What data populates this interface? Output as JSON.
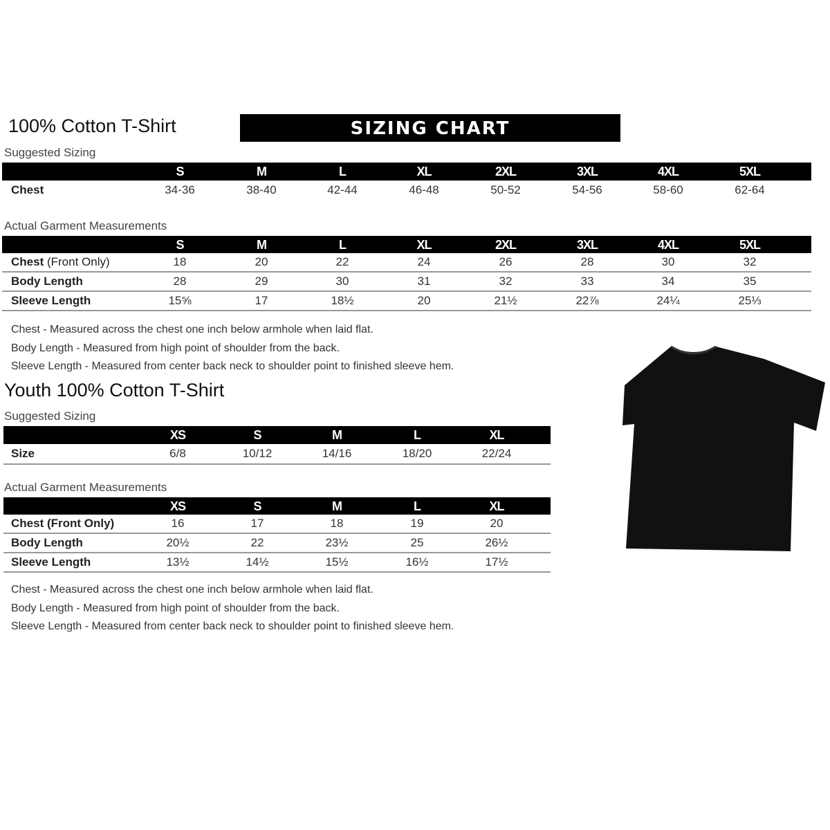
{
  "adult": {
    "title": "100% Cotton T-Shirt",
    "banner": "SIZING CHART",
    "suggested_label": "Suggested Sizing",
    "sizes": [
      "S",
      "M",
      "L",
      "XL",
      "2XL",
      "3XL",
      "4XL",
      "5XL"
    ],
    "suggested_rows": [
      {
        "label": "Chest",
        "values": [
          "34-36",
          "38-40",
          "42-44",
          "46-48",
          "50-52",
          "54-56",
          "58-60",
          "62-64"
        ]
      }
    ],
    "actual_label": "Actual Garment Measurements",
    "actual_rows": [
      {
        "label": "Chest",
        "label_extra": " (Front Only)",
        "values": [
          "18",
          "20",
          "22",
          "24",
          "26",
          "28",
          "30",
          "32"
        ]
      },
      {
        "label": "Body Length",
        "label_extra": "",
        "values": [
          "28",
          "29",
          "30",
          "31",
          "32",
          "33",
          "34",
          "35"
        ]
      },
      {
        "label": "Sleeve Length",
        "label_extra": "",
        "values": [
          "15⅝",
          "17",
          "18½",
          "20",
          "21½",
          "22⅞",
          "24¼",
          "25⅓"
        ]
      }
    ],
    "notes": [
      "Chest - Measured across the chest one inch below armhole when laid flat.",
      "Body Length - Measured from high point of shoulder from the back.",
      "Sleeve Length - Measured from center back neck to shoulder point to finished sleeve hem."
    ]
  },
  "youth": {
    "title": "Youth 100% Cotton T-Shirt",
    "suggested_label": "Suggested Sizing",
    "sizes": [
      "XS",
      "S",
      "M",
      "L",
      "XL"
    ],
    "suggested_rows": [
      {
        "label": "Size",
        "values": [
          "6/8",
          "10/12",
          "14/16",
          "18/20",
          "22/24"
        ]
      }
    ],
    "actual_label": "Actual Garment Measurements",
    "actual_rows": [
      {
        "label": "Chest (Front Only)",
        "values": [
          "16",
          "17",
          "18",
          "19",
          "20"
        ]
      },
      {
        "label": "Body Length",
        "values": [
          "20½",
          "22",
          "23½",
          "25",
          "26½"
        ]
      },
      {
        "label": "Sleeve Length",
        "values": [
          "13½",
          "14½",
          "15½",
          "16½",
          "17½"
        ]
      }
    ],
    "notes": [
      "Chest - Measured across the chest one inch below armhole when laid flat.",
      "Body Length - Measured from high point of shoulder from the back.",
      "Sleeve Length - Measured from center back neck to shoulder point to finished sleeve hem."
    ]
  },
  "tshirt_color": "#111111"
}
